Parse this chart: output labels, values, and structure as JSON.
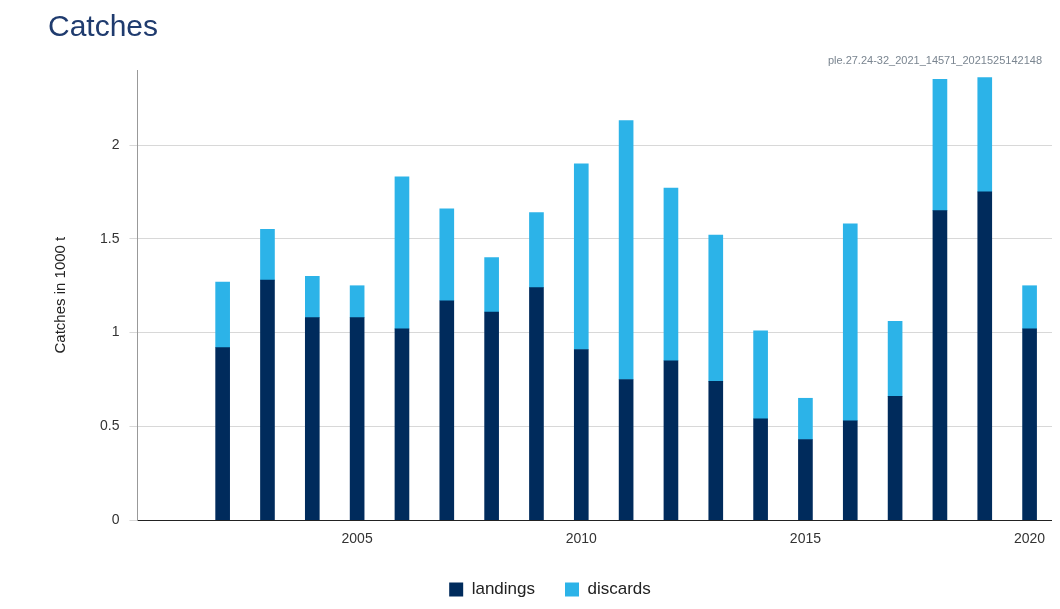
{
  "chart_data": {
    "type": "bar",
    "title": "Catches",
    "ylabel": "Catches in 1000 t",
    "annotations": [
      "ple.27.24-32_2021_14571_2021525142148"
    ],
    "x": [
      2002,
      2003,
      2004,
      2005,
      2006,
      2007,
      2008,
      2009,
      2010,
      2011,
      2012,
      2013,
      2014,
      2015,
      2016,
      2017,
      2018,
      2019,
      2020
    ],
    "series": [
      {
        "name": "landings",
        "color": "#002b5c",
        "values": [
          0.92,
          1.28,
          1.08,
          1.08,
          1.02,
          1.17,
          1.11,
          1.24,
          0.91,
          0.75,
          0.85,
          0.74,
          0.54,
          0.43,
          0.53,
          0.66,
          1.65,
          1.75,
          1.02
        ]
      },
      {
        "name": "discards",
        "color": "#2cb3e8",
        "values": [
          0.35,
          0.27,
          0.22,
          0.17,
          0.81,
          0.49,
          0.29,
          0.4,
          0.99,
          1.38,
          0.92,
          0.78,
          0.47,
          0.22,
          1.05,
          0.4,
          0.7,
          0.61,
          0.23
        ]
      }
    ],
    "stacked": true,
    "xlim": [
      2000.1,
      2020.5
    ],
    "xticks": [
      2005,
      2010,
      2015,
      2020
    ],
    "ylim": [
      0,
      2.4
    ],
    "yticks": [
      0,
      0.5,
      1,
      1.5,
      2
    ],
    "grid": "y",
    "legend": "bottom",
    "marker": "square"
  }
}
